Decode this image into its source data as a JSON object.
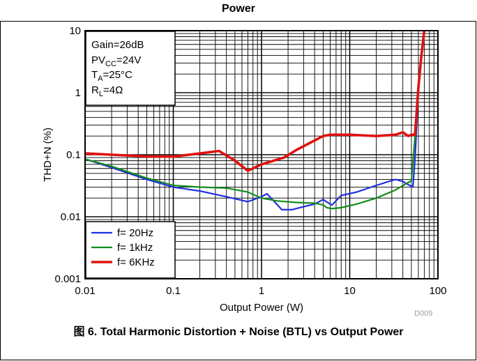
{
  "top_caption": "Power",
  "figure_caption": "图 6. Total Harmonic Distortion + Noise (BTL) vs Output Power",
  "figure_id": "D009",
  "conditions": {
    "line1": "Gain=26dB",
    "line2_base": "PV",
    "line2_sub": "CC",
    "line2_value": "=24V",
    "line3_base": "T",
    "line3_sub": "A",
    "line3_value": "=25°C",
    "line4_base": "R",
    "line4_sub": "L",
    "line4_value": "=4Ω"
  },
  "chart_data": {
    "type": "line",
    "xlabel": "Output Power (W)",
    "ylabel": "THD+N (%)",
    "xscale": "log",
    "yscale": "log",
    "xlim": [
      0.01,
      100
    ],
    "ylim": [
      0.001,
      10
    ],
    "xticks": [
      "0.01",
      "0.1",
      "1",
      "10",
      "100"
    ],
    "yticks": [
      "10",
      "1",
      "0.1",
      "0.01",
      "0.001"
    ],
    "grid": true,
    "legend_position": "bottom-left",
    "series": [
      {
        "name": "f= 20Hz",
        "color": "#1f2fe0",
        "x": [
          0.01,
          0.02,
          0.05,
          0.1,
          0.2,
          0.4,
          0.7,
          1.0,
          1.15,
          1.4,
          1.7,
          2.2,
          3.0,
          4.0,
          5.0,
          5.6,
          6.3,
          8.0,
          12,
          20,
          33,
          40,
          46,
          52,
          55,
          60,
          65,
          70
        ],
        "y": [
          0.085,
          0.062,
          0.04,
          0.03,
          0.026,
          0.021,
          0.0175,
          0.021,
          0.0235,
          0.0175,
          0.013,
          0.013,
          0.0145,
          0.016,
          0.019,
          0.017,
          0.0155,
          0.022,
          0.025,
          0.032,
          0.04,
          0.037,
          0.033,
          0.03,
          0.09,
          1.0,
          4.0,
          10
        ]
      },
      {
        "name": "f= 1kHz",
        "color": "#118c1c",
        "x": [
          0.01,
          0.02,
          0.05,
          0.1,
          0.2,
          0.4,
          0.7,
          1.0,
          1.5,
          2.5,
          4.0,
          5.0,
          5.5,
          6.3,
          8.0,
          12,
          20,
          33,
          45,
          50,
          55,
          60,
          65,
          70
        ],
        "y": [
          0.085,
          0.065,
          0.042,
          0.032,
          0.03,
          0.029,
          0.025,
          0.02,
          0.018,
          0.017,
          0.0165,
          0.0155,
          0.014,
          0.0135,
          0.014,
          0.016,
          0.02,
          0.027,
          0.035,
          0.038,
          0.2,
          1.2,
          4.0,
          10
        ]
      },
      {
        "name": "f= 6KHz",
        "color": "#e11010",
        "x": [
          0.01,
          0.02,
          0.05,
          0.1,
          0.2,
          0.33,
          0.5,
          0.7,
          1.0,
          1.8,
          2.5,
          4.0,
          5.0,
          6.0,
          10,
          20,
          33,
          40,
          46,
          50,
          55,
          60,
          65,
          70
        ],
        "y": [
          0.105,
          0.1,
          0.094,
          0.093,
          0.105,
          0.115,
          0.08,
          0.055,
          0.07,
          0.09,
          0.12,
          0.17,
          0.2,
          0.21,
          0.21,
          0.2,
          0.21,
          0.23,
          0.2,
          0.21,
          0.21,
          1.2,
          4.0,
          10
        ]
      }
    ]
  }
}
